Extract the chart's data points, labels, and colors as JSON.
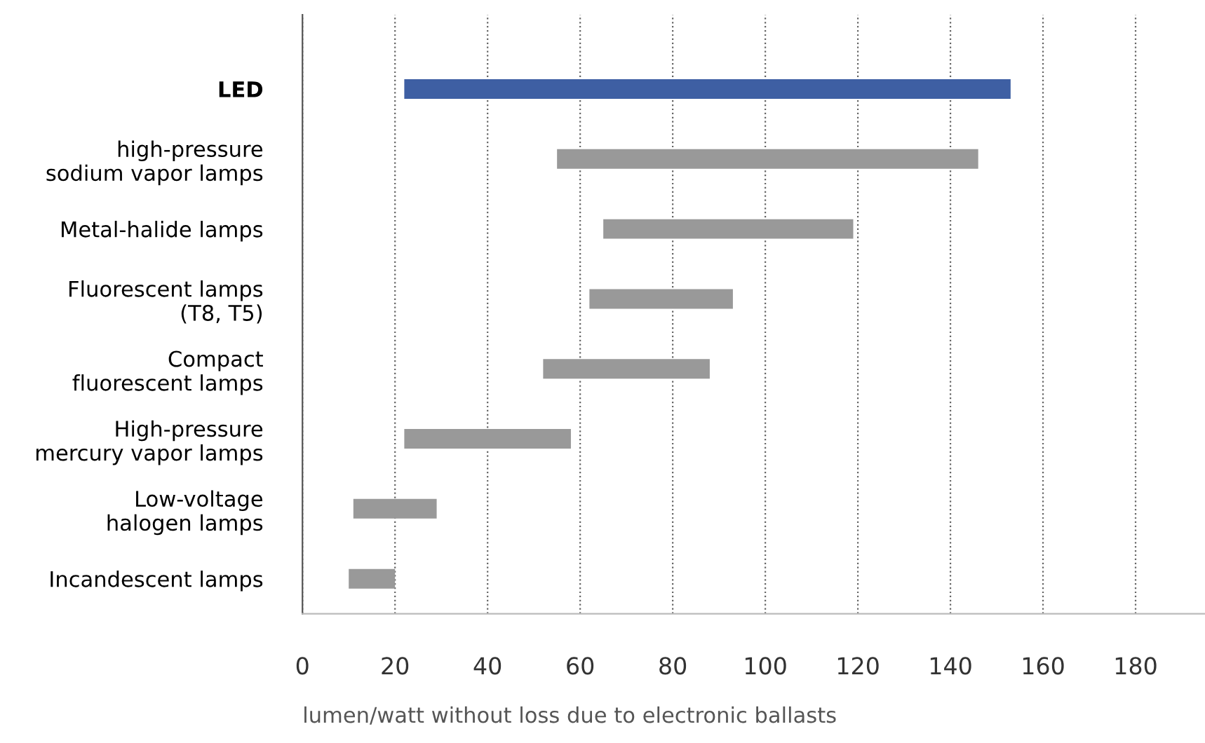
{
  "chart_data": {
    "type": "bar",
    "orientation": "horizontal",
    "categories": [
      "LED",
      "high-pressure\nsodium vapor lamps",
      "Metal-halide lamps",
      "Fluorescent lamps\n(T8, T5)",
      "Compact\nfluorescent lamps",
      "High-pressure\nmercury vapor lamps",
      "Low-voltage\nhalogen lamps",
      "Incandescent lamps"
    ],
    "base": [
      22,
      55,
      65,
      62,
      52,
      22,
      11,
      10
    ],
    "values": [
      131,
      91,
      54,
      31,
      36,
      36,
      18,
      10
    ],
    "colors": [
      "#3e5fa3",
      "#999999",
      "#999999",
      "#999999",
      "#999999",
      "#999999",
      "#999999",
      "#999999"
    ],
    "xlim": [
      0,
      195
    ],
    "xticks": [
      0,
      20,
      40,
      60,
      80,
      100,
      120,
      140,
      160,
      180
    ],
    "grid": "x",
    "line_style": "dotted",
    "xlabel": "lumen/watt without loss due to electronic ballasts"
  }
}
